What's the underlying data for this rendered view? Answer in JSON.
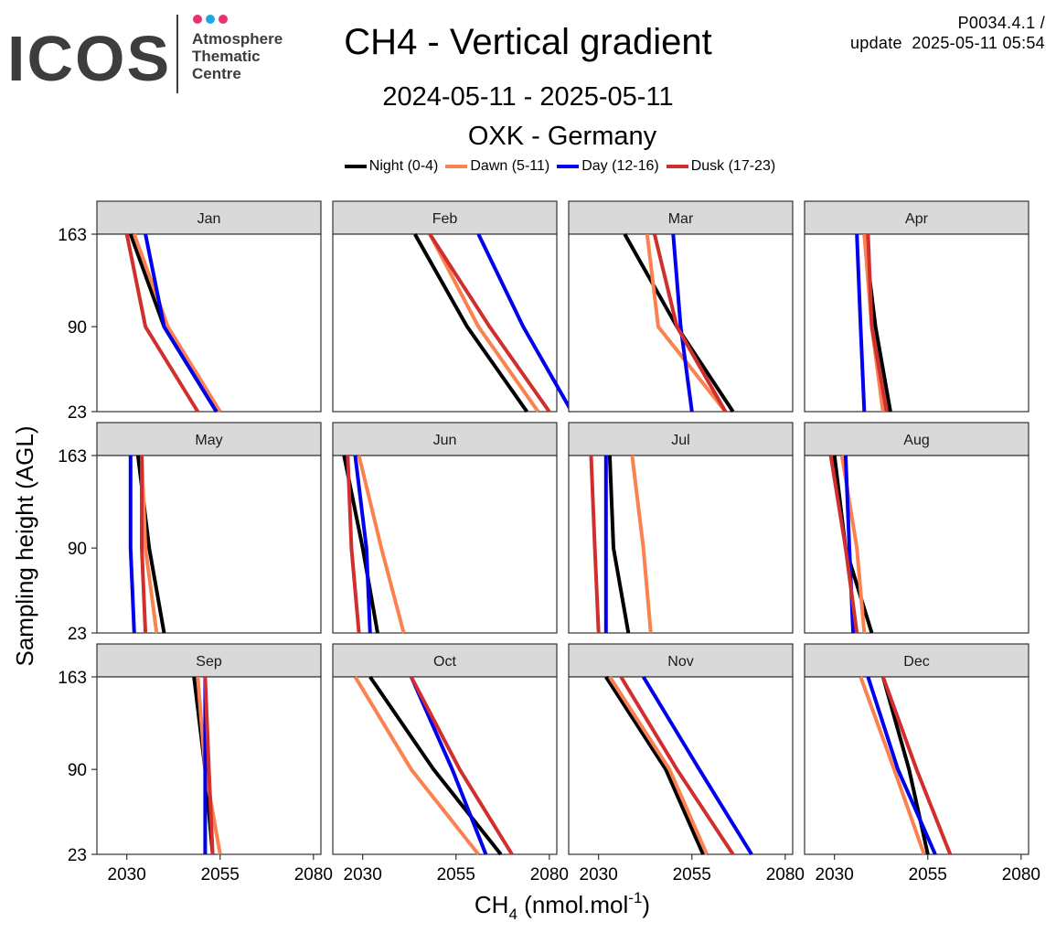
{
  "header": {
    "logo_text": "ICOS",
    "logo_sub": [
      "Atmosphere",
      "Thematic",
      "Centre"
    ],
    "logo_dot_colors": [
      "#e8336e",
      "#1ea7e1",
      "#e8336e"
    ],
    "title": "CH4 - Vertical gradient",
    "period": "2024-05-11 - 2025-05-11",
    "station": "OXK - Germany",
    "version_line1": "P0034.4.1 /",
    "version_line2": "update  2025-05-11 05:54"
  },
  "chart_data": {
    "type": "line",
    "title": "CH4 - Vertical gradient",
    "subtitle": "2024-05-11 - 2025-05-11 OXK - Germany",
    "xlabel_main": "CH",
    "xlabel_sub": "4",
    "xlabel_unit": " (nmol.mol",
    "xlabel_sup": "-1",
    "xlabel_close": ")",
    "ylabel": "Sampling height (AGL)",
    "xlim": [
      2022,
      2082
    ],
    "ylim": [
      23,
      163
    ],
    "x_ticks": [
      2030,
      2055,
      2080
    ],
    "y_ticks": [
      23,
      90,
      163
    ],
    "legend_position": "top",
    "heights": [
      163,
      90,
      23
    ],
    "series": [
      {
        "name": "Night (0-4)",
        "color": "#000000"
      },
      {
        "name": "Dawn (5-11)",
        "color": "#fb8150"
      },
      {
        "name": "Day (12-16)",
        "color": "#0000ee"
      },
      {
        "name": "Dusk (17-23)",
        "color": "#d12e2e"
      }
    ],
    "panels": [
      {
        "month": "Jan",
        "values": [
          [
            2031,
            2040,
            2054
          ],
          [
            2032,
            2041,
            2055
          ],
          [
            2035,
            2040,
            2054
          ],
          [
            2030,
            2035,
            2049
          ]
        ]
      },
      {
        "month": "Feb",
        "values": [
          [
            2044,
            2058,
            2074
          ],
          [
            2048,
            2061,
            2077
          ],
          [
            2061,
            2073,
            2086
          ],
          [
            2048,
            2064,
            2080
          ]
        ]
      },
      {
        "month": "Mar",
        "values": [
          [
            2037,
            2051,
            2066
          ],
          [
            2043,
            2046,
            2064
          ],
          [
            2050,
            2052,
            2055
          ],
          [
            2045,
            2051,
            2064
          ]
        ]
      },
      {
        "month": "Apr",
        "values": [
          [
            2038,
            2041,
            2045
          ],
          [
            2038,
            2040,
            2043
          ],
          [
            2036,
            2037,
            2038
          ],
          [
            2039,
            2040,
            2044
          ]
        ]
      },
      {
        "month": "May",
        "values": [
          [
            2033,
            2036,
            2040
          ],
          [
            2034,
            2035,
            2038
          ],
          [
            2031,
            2031,
            2032
          ],
          [
            2034,
            2034,
            2035
          ]
        ]
      },
      {
        "month": "Jun",
        "values": [
          [
            2025,
            2030,
            2034
          ],
          [
            2029,
            2035,
            2041
          ],
          [
            2028,
            2031,
            2032
          ],
          [
            2026,
            2027,
            2029
          ]
        ]
      },
      {
        "month": "Jul",
        "values": [
          [
            2033,
            2034,
            2038
          ],
          [
            2039,
            2042,
            2044
          ],
          [
            2032,
            2032,
            2032
          ],
          [
            2028,
            2029,
            2030
          ]
        ]
      },
      {
        "month": "Aug",
        "values": [
          [
            2030,
            2033,
            2040
          ],
          [
            2032,
            2036,
            2038
          ],
          [
            2033,
            2034,
            2035
          ],
          [
            2029,
            2033,
            2036
          ]
        ]
      },
      {
        "month": "Sep",
        "values": [
          [
            2048,
            2051,
            2053
          ],
          [
            2049,
            2051,
            2055
          ],
          [
            2051,
            2051,
            2051
          ],
          [
            2051,
            2052,
            2053
          ]
        ]
      },
      {
        "month": "Oct",
        "values": [
          [
            2032,
            2049,
            2067
          ],
          [
            2028,
            2043,
            2061
          ],
          [
            2043,
            2054,
            2063
          ],
          [
            2043,
            2056,
            2070
          ]
        ]
      },
      {
        "month": "Nov",
        "values": [
          [
            2032,
            2048,
            2058
          ],
          [
            2033,
            2049,
            2059
          ],
          [
            2042,
            2057,
            2071
          ],
          [
            2036,
            2051,
            2066
          ]
        ]
      },
      {
        "month": "Dec",
        "values": [
          [
            2043,
            2050,
            2055
          ],
          [
            2037,
            2046,
            2054
          ],
          [
            2039,
            2047,
            2057
          ],
          [
            2043,
            2052,
            2061
          ]
        ]
      }
    ]
  }
}
